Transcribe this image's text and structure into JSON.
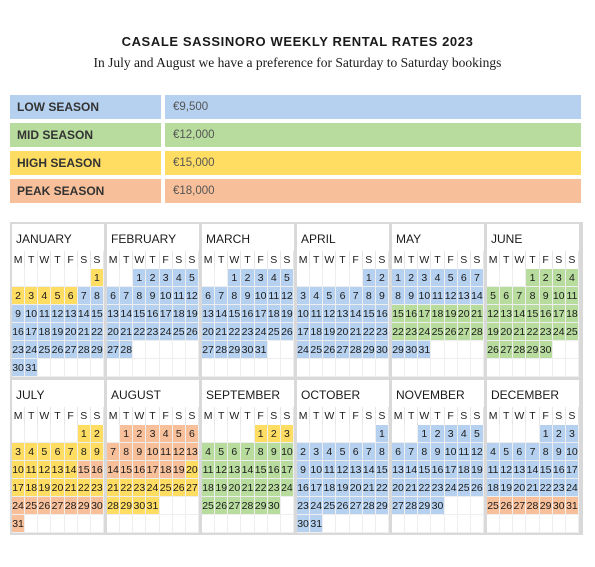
{
  "title": "CASALE SASSINORO WEEKLY RENTAL RATES 2023",
  "subtitle": "In July and August we have a preference for Saturday to Saturday bookings",
  "colors": {
    "low": "#b5d1ef",
    "mid": "#b7dc9d",
    "high": "#ffdd63",
    "peak": "#f8c09a",
    "none": "#ffffff"
  },
  "seasons": [
    {
      "key": "low",
      "name": "LOW SEASON",
      "price": "€9,500"
    },
    {
      "key": "mid",
      "name": "MID SEASON",
      "price": "€12,000"
    },
    {
      "key": "high",
      "name": "HIGH SEASON",
      "price": "€15,000"
    },
    {
      "key": "peak",
      "name": "PEAK SEASON",
      "price": "€18,000"
    }
  ],
  "weekday_letters": [
    "M",
    "T",
    "W",
    "T",
    "F",
    "S",
    "S"
  ],
  "months": [
    {
      "name": "JANUARY",
      "offset": 6,
      "days": 31,
      "bands": [
        [
          1,
          1,
          "high"
        ],
        [
          2,
          6,
          "high"
        ],
        [
          7,
          31,
          "low"
        ]
      ]
    },
    {
      "name": "FEBRUARY",
      "offset": 2,
      "days": 28,
      "bands": [
        [
          1,
          28,
          "low"
        ]
      ]
    },
    {
      "name": "MARCH",
      "offset": 2,
      "days": 31,
      "bands": [
        [
          1,
          31,
          "low"
        ]
      ]
    },
    {
      "name": "APRIL",
      "offset": 5,
      "days": 30,
      "bands": [
        [
          1,
          30,
          "low"
        ]
      ]
    },
    {
      "name": "MAY",
      "offset": 0,
      "days": 31,
      "bands": [
        [
          1,
          14,
          "low"
        ],
        [
          15,
          28,
          "mid"
        ],
        [
          29,
          31,
          "low"
        ]
      ]
    },
    {
      "name": "JUNE",
      "offset": 3,
      "days": 30,
      "bands": [
        [
          1,
          30,
          "mid"
        ]
      ]
    },
    {
      "name": "JULY",
      "offset": 5,
      "days": 31,
      "bands": [
        [
          1,
          14,
          "high"
        ],
        [
          15,
          16,
          "peak"
        ],
        [
          17,
          23,
          "high"
        ],
        [
          24,
          31,
          "peak"
        ]
      ]
    },
    {
      "name": "AUGUST",
      "offset": 1,
      "days": 31,
      "bands": [
        [
          1,
          19,
          "peak"
        ],
        [
          20,
          27,
          "high"
        ],
        [
          28,
          31,
          "high"
        ]
      ]
    },
    {
      "name": "SEPTEMBER",
      "offset": 4,
      "days": 30,
      "bands": [
        [
          1,
          3,
          "high"
        ],
        [
          4,
          30,
          "mid"
        ]
      ]
    },
    {
      "name": "OCTOBER",
      "offset": 6,
      "days": 31,
      "bands": [
        [
          1,
          31,
          "low"
        ]
      ]
    },
    {
      "name": "NOVEMBER",
      "offset": 2,
      "days": 30,
      "bands": [
        [
          1,
          30,
          "low"
        ]
      ]
    },
    {
      "name": "DECEMBER",
      "offset": 4,
      "days": 31,
      "bands": [
        [
          1,
          24,
          "low"
        ],
        [
          25,
          31,
          "peak"
        ]
      ]
    }
  ]
}
